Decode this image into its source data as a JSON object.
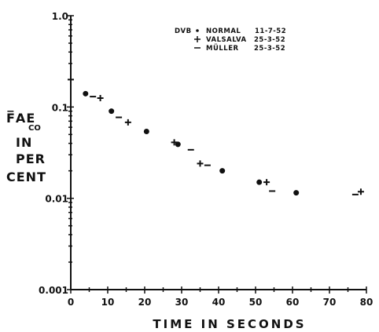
{
  "chart_data": {
    "type": "scatter",
    "title": "",
    "subject": "DVB",
    "xlabel": "TIME IN SECONDS",
    "ylabel_lines": [
      "F̅AE",
      "CO",
      "IN",
      "PER",
      "CENT"
    ],
    "x_ticks": [
      "0",
      "10",
      "20",
      "30",
      "40",
      "50",
      "60",
      "70",
      "80"
    ],
    "y_ticks": [
      "1.0",
      "0.1",
      "0.01",
      "0.001"
    ],
    "xlim": [
      0,
      80
    ],
    "ylim": [
      0.001,
      1.0
    ],
    "y_scale": "log",
    "legend_position": "top-right",
    "series": [
      {
        "name": "NORMAL",
        "date": "11-7-52",
        "marker": "dot",
        "points": [
          [
            4,
            0.14
          ],
          [
            11,
            0.09
          ],
          [
            20.5,
            0.054
          ],
          [
            29,
            0.039
          ],
          [
            41,
            0.02
          ],
          [
            51,
            0.015
          ],
          [
            61,
            0.0115
          ]
        ]
      },
      {
        "name": "VALSALVA",
        "date": "25-3-52",
        "marker": "plus",
        "points": [
          [
            0,
            0.2
          ],
          [
            8,
            0.125
          ],
          [
            15.5,
            0.068
          ],
          [
            28,
            0.041
          ],
          [
            35,
            0.024
          ],
          [
            53,
            0.015
          ],
          [
            78.5,
            0.0118
          ]
        ]
      },
      {
        "name": "MÜLLER",
        "date": "25-3-52",
        "marker": "dash",
        "points": [
          [
            6,
            0.13
          ],
          [
            13,
            0.077
          ],
          [
            32.5,
            0.034
          ],
          [
            37,
            0.023
          ],
          [
            54.5,
            0.012
          ],
          [
            77,
            0.011
          ]
        ]
      }
    ]
  }
}
